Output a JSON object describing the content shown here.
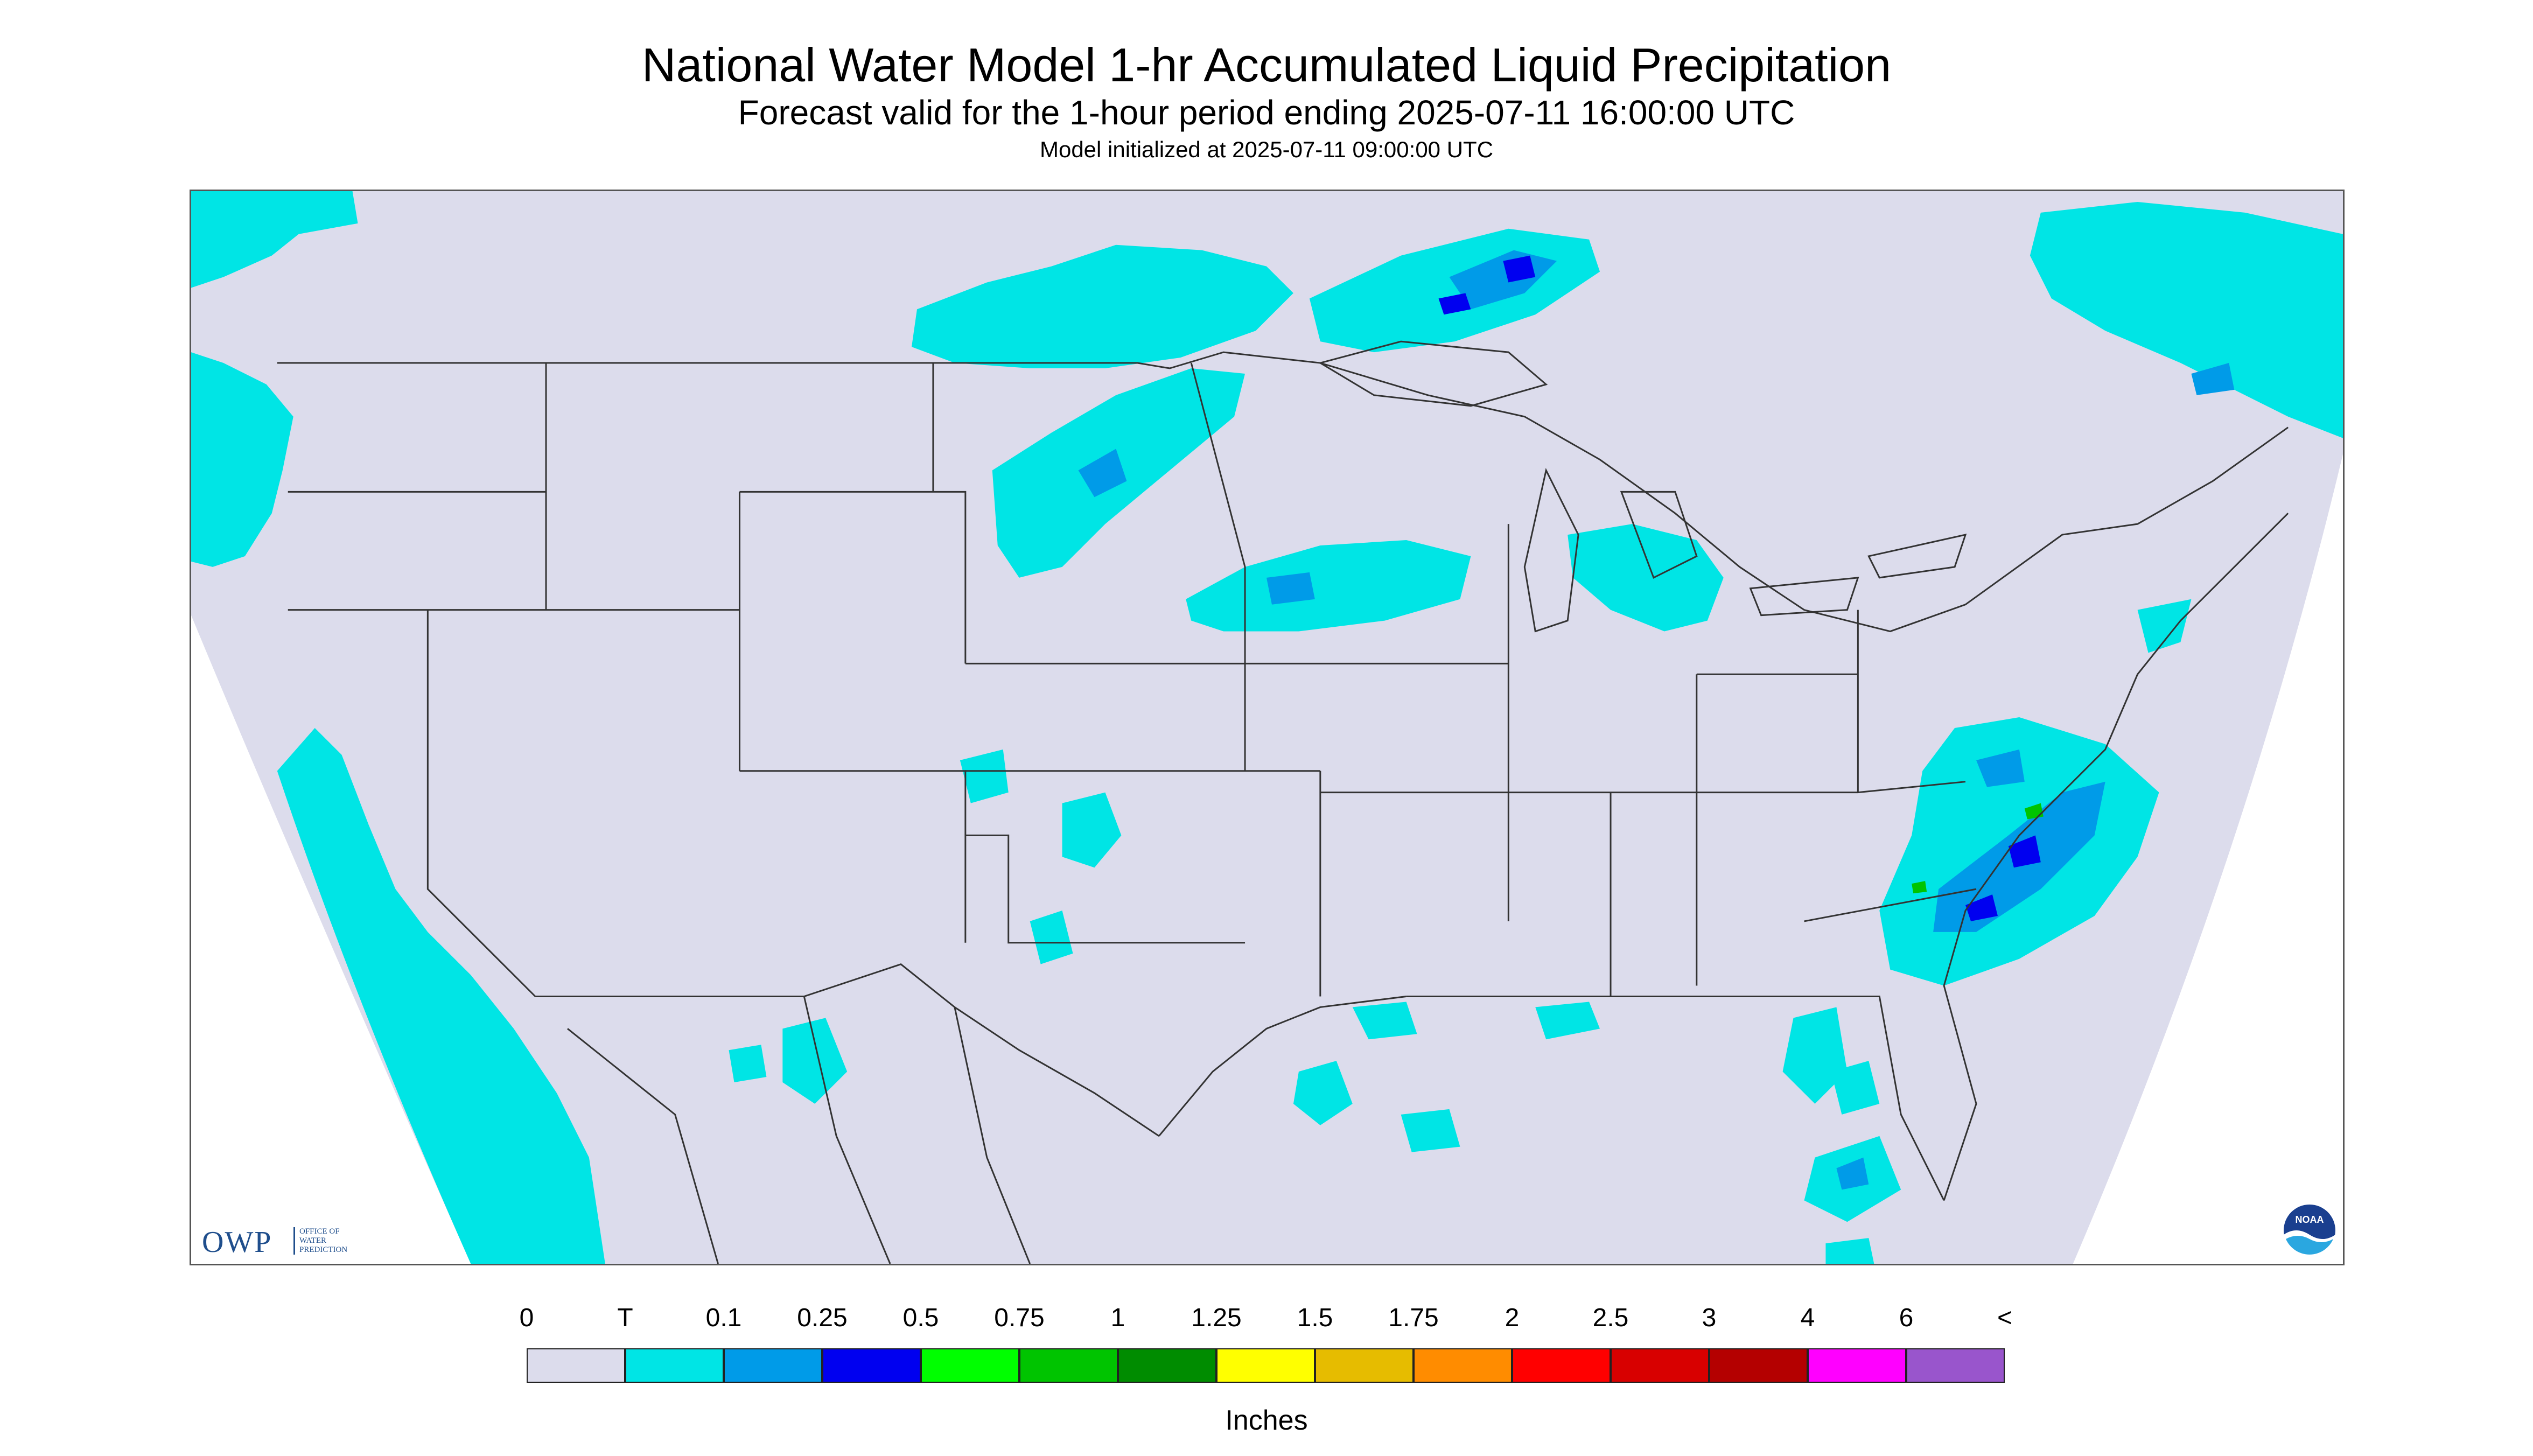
{
  "title": "National Water Model 1-hr Accumulated Liquid Precipitation",
  "subtitle": "Forecast valid for the 1-hour period ending 2025-07-11 16:00:00 UTC",
  "model_init": "Model initialized at 2025-07-11 09:00:00 UTC",
  "map": {
    "background_color": "#dcdcec",
    "outside_color": "#ffffff",
    "boundary_color": "#333333",
    "precip_regions": [
      {
        "area": "Pacific Northwest coast",
        "category": "T"
      },
      {
        "area": "Pacific Ocean off California and Baja",
        "category": "T"
      },
      {
        "area": "Southern Canada / Minnesota border",
        "category": "0.1"
      },
      {
        "area": "Lake Superior north shore",
        "category": "0.25"
      },
      {
        "area": "North Dakota / South Dakota",
        "category": "0.1"
      },
      {
        "area": "Southern Minnesota / Wisconsin",
        "category": "0.1"
      },
      {
        "area": "Lower Michigan",
        "category": "T"
      },
      {
        "area": "Gulf Coast and Gulf of Mexico",
        "category": "0.1"
      },
      {
        "area": "Southern Florida",
        "category": "0.1"
      },
      {
        "area": "Atlantic off Carolinas",
        "category": "0.5"
      },
      {
        "area": "New England / Quebec",
        "category": "0.1"
      },
      {
        "area": "Oklahoma / Texas panhandle",
        "category": "T"
      },
      {
        "area": "Northern Mexico",
        "category": "T"
      }
    ]
  },
  "logos": {
    "owp_text": "OWP",
    "owp_sub": "OFFICE OF\nWATER\nPREDICTION",
    "noaa_text": "NOAA"
  },
  "legend": {
    "labels": [
      "0",
      "T",
      "0.1",
      "0.25",
      "0.5",
      "0.75",
      "1",
      "1.25",
      "1.5",
      "1.75",
      "2",
      "2.5",
      "3",
      "4",
      "6",
      "<"
    ],
    "colors": [
      "#dcdcec",
      "#00e5e5",
      "#009be8",
      "#0000f0",
      "#00ff00",
      "#00c400",
      "#008c00",
      "#ffff00",
      "#e6bc00",
      "#ff8c00",
      "#ff0000",
      "#d80000",
      "#b40000",
      "#ff00ff",
      "#9955cc"
    ],
    "units": "Inches"
  }
}
